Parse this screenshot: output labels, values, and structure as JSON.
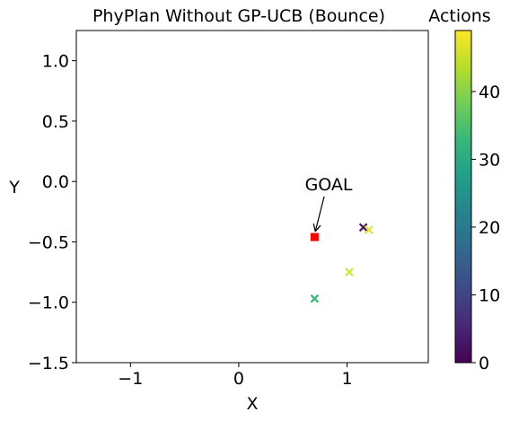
{
  "chart_data": {
    "type": "scatter",
    "title": "PhyPlan Without GP-UCB (Bounce)",
    "xlabel": "X",
    "ylabel": "Y",
    "xlim": [
      -1.5,
      1.75
    ],
    "ylim": [
      -1.5,
      1.25
    ],
    "x_ticks": [
      -1,
      0,
      1
    ],
    "y_ticks": [
      1.0,
      0.5,
      0.0,
      -0.5,
      -1.0,
      -1.5
    ],
    "x_tick_labels": [
      "−1",
      "0",
      "1"
    ],
    "y_tick_labels": [
      "1.0",
      "0.5",
      "0.0",
      "−0.5",
      "−1.0",
      "−1.5"
    ],
    "grid": false,
    "goal": {
      "x": 0.7,
      "y": -0.46,
      "color": "#ff0000",
      "label": "GOAL",
      "label_x": 0.83,
      "label_y": -0.02
    },
    "actions": [
      {
        "x": 1.15,
        "y": -0.38,
        "action": 3
      },
      {
        "x": 0.7,
        "y": -0.97,
        "action": 33
      },
      {
        "x": 1.02,
        "y": -0.75,
        "action": 46
      },
      {
        "x": 1.2,
        "y": -0.4,
        "action": 47
      }
    ],
    "colorbar": {
      "title": "Actions",
      "min": 0,
      "max": 49,
      "ticks": [
        0,
        10,
        20,
        30,
        40
      ],
      "tick_labels": [
        "0",
        "10",
        "20",
        "30",
        "40"
      ],
      "colormap": "viridis"
    }
  }
}
